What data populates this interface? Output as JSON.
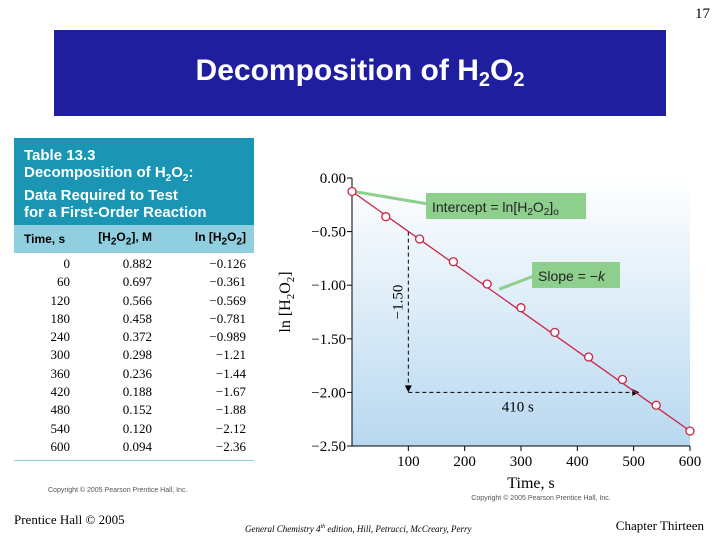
{
  "slide_number": "17",
  "title": "Decomposition of H2O2",
  "table": {
    "caption_line1": "Table 13.3",
    "caption_line2": "Decomposition of H2O2:",
    "caption_line3": "Data Required to Test",
    "caption_line4": "for a First-Order Reaction",
    "headers": [
      "Time, s",
      "[H2O2], M",
      "ln [H2O2]"
    ],
    "rows": [
      [
        "0",
        "0.882",
        "−0.126"
      ],
      [
        "60",
        "0.697",
        "−0.361"
      ],
      [
        "120",
        "0.566",
        "−0.569"
      ],
      [
        "180",
        "0.458",
        "−0.781"
      ],
      [
        "240",
        "0.372",
        "−0.989"
      ],
      [
        "300",
        "0.298",
        "−1.21"
      ],
      [
        "360",
        "0.236",
        "−1.44"
      ],
      [
        "420",
        "0.188",
        "−1.67"
      ],
      [
        "480",
        "0.152",
        "−1.88"
      ],
      [
        "540",
        "0.120",
        "−2.12"
      ],
      [
        "600",
        "0.094",
        "−2.36"
      ]
    ],
    "copyright": "Copyright © 2005 Pearson Prentice Hall, Inc."
  },
  "chart_data": {
    "type": "scatter",
    "xlabel": "Time, s",
    "ylabel": "ln [H2O2]",
    "xlim": [
      0,
      600
    ],
    "ylim": [
      -2.5,
      0.0
    ],
    "x_ticks": [
      100,
      200,
      300,
      400,
      500,
      600
    ],
    "y_ticks": [
      0.0,
      -0.5,
      -1.0,
      -1.5,
      -2.0,
      -2.5
    ],
    "y_tick_labels": [
      "0.00",
      "−0.50",
      "−1.00",
      "−1.50",
      "−2.00",
      "−2.50"
    ],
    "x": [
      0,
      60,
      120,
      180,
      240,
      300,
      360,
      420,
      480,
      540,
      600
    ],
    "y": [
      -0.126,
      -0.361,
      -0.569,
      -0.781,
      -0.989,
      -1.21,
      -1.44,
      -1.67,
      -1.88,
      -2.12,
      -2.36
    ],
    "fit_line": [
      [
        0,
        -0.126
      ],
      [
        600,
        -2.36
      ]
    ],
    "annotations": {
      "intercept_label": "Intercept = ln[H2O2]o",
      "slope_label": "Slope = −k",
      "rise_label": "−1.50",
      "run_label": "410 s"
    },
    "triangle": {
      "x_start": 100,
      "x_end": 510,
      "y_start": -0.5,
      "y_end": -2.0
    },
    "copyright": "Copyright © 2005 Pearson Prentice Hall, Inc.",
    "colors": {
      "plot_bg_top": "#ffffff",
      "plot_bg_bottom": "#b8d8f0",
      "line": "#cc2244",
      "callout": "#8ecf8e"
    }
  },
  "footer": {
    "left": "Prentice Hall © 2005",
    "center": "General Chemistry 4th edition, Hill, Petrucci, McCreary, Perry",
    "right": "Chapter Thirteen"
  }
}
